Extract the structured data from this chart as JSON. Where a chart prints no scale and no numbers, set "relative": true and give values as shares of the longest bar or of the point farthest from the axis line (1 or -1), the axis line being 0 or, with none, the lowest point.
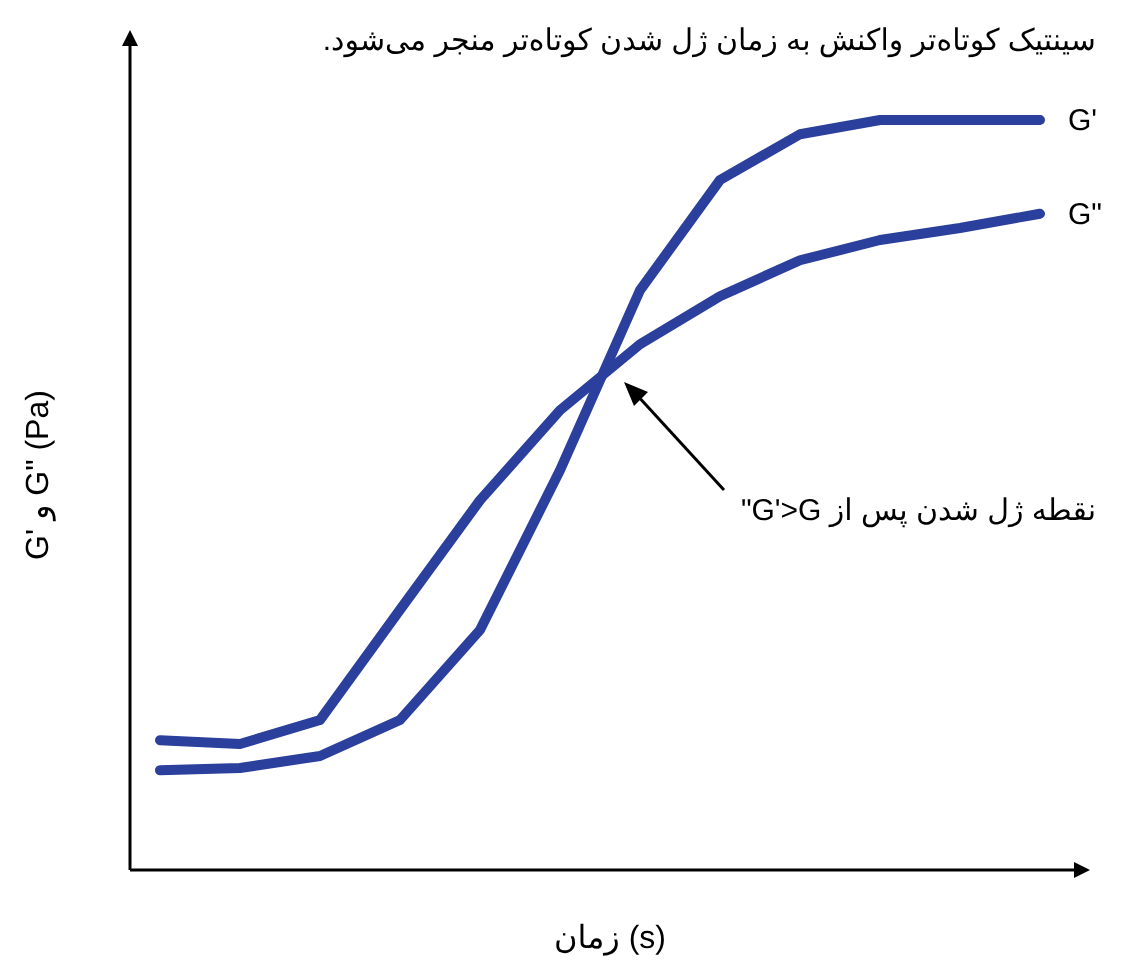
{
  "chart_data": {
    "type": "line",
    "relative": true,
    "title": "سینتیک کوتاه‌تر واکنش به زمان ژل شدن کوتاه‌تر منجر می‌شود.",
    "xlabel": "زمان (s)",
    "ylabel": "G' و G\" (Pa)",
    "marker": "none",
    "line_style": "solid",
    "categories": [
      null,
      null,
      null,
      null,
      null,
      null,
      null,
      null,
      null,
      null,
      null,
      null
    ],
    "series": [
      {
        "name": "G'",
        "color": "#2b3f9c",
        "values": [
          0.133,
          0.136,
          0.152,
          0.2,
          0.32,
          0.533,
          0.773,
          0.92,
          0.981,
          1,
          1,
          1
        ]
      },
      {
        "name": "G\"",
        "color": "#2b3f9c",
        "values": [
          0.173,
          0.168,
          0.2,
          0.347,
          0.493,
          0.613,
          0.701,
          0.765,
          0.813,
          0.84,
          0.856,
          0.875
        ]
      }
    ],
    "annotations": [
      "نقطه ژل شدن پس از G'>G\""
    ]
  }
}
